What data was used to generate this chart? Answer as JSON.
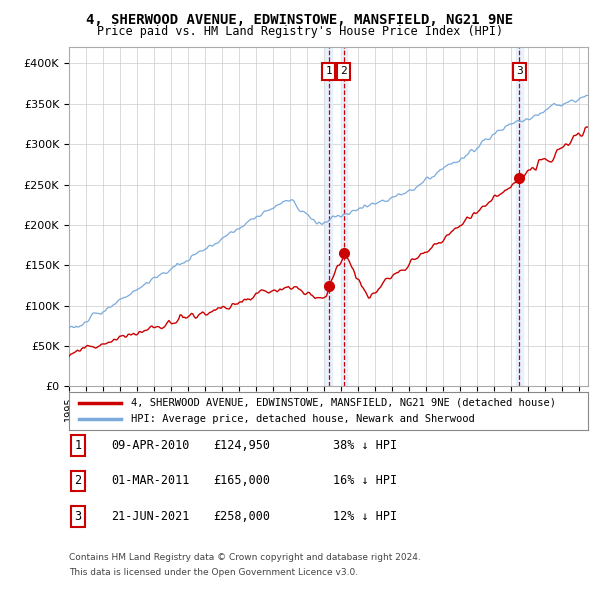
{
  "title": "4, SHERWOOD AVENUE, EDWINSTOWE, MANSFIELD, NG21 9NE",
  "subtitle": "Price paid vs. HM Land Registry's House Price Index (HPI)",
  "ylim": [
    0,
    420000
  ],
  "yticks": [
    0,
    50000,
    100000,
    150000,
    200000,
    250000,
    300000,
    350000,
    400000
  ],
  "ytick_labels": [
    "£0",
    "£50K",
    "£100K",
    "£150K",
    "£200K",
    "£250K",
    "£300K",
    "£350K",
    "£400K"
  ],
  "hpi_color": "#7aabdb",
  "price_color": "#cc0000",
  "dashed_line_color": "#cc0000",
  "shade_color": "#ddeeff",
  "transaction_dates": [
    2010.27,
    2011.16,
    2021.47
  ],
  "transaction_prices": [
    124950,
    165000,
    258000
  ],
  "transaction_labels": [
    "1",
    "2",
    "3"
  ],
  "transaction_info": [
    {
      "label": "1",
      "date": "09-APR-2010",
      "price": "£124,950",
      "hpi": "38% ↓ HPI"
    },
    {
      "label": "2",
      "date": "01-MAR-2011",
      "price": "£165,000",
      "hpi": "16% ↓ HPI"
    },
    {
      "label": "3",
      "date": "21-JUN-2021",
      "price": "£258,000",
      "hpi": "12% ↓ HPI"
    }
  ],
  "legend_entries": [
    "4, SHERWOOD AVENUE, EDWINSTOWE, MANSFIELD, NG21 9NE (detached house)",
    "HPI: Average price, detached house, Newark and Sherwood"
  ],
  "footnote1": "Contains HM Land Registry data © Crown copyright and database right 2024.",
  "footnote2": "This data is licensed under the Open Government Licence v3.0.",
  "xlim_start": 1995,
  "xlim_end": 2025.5
}
